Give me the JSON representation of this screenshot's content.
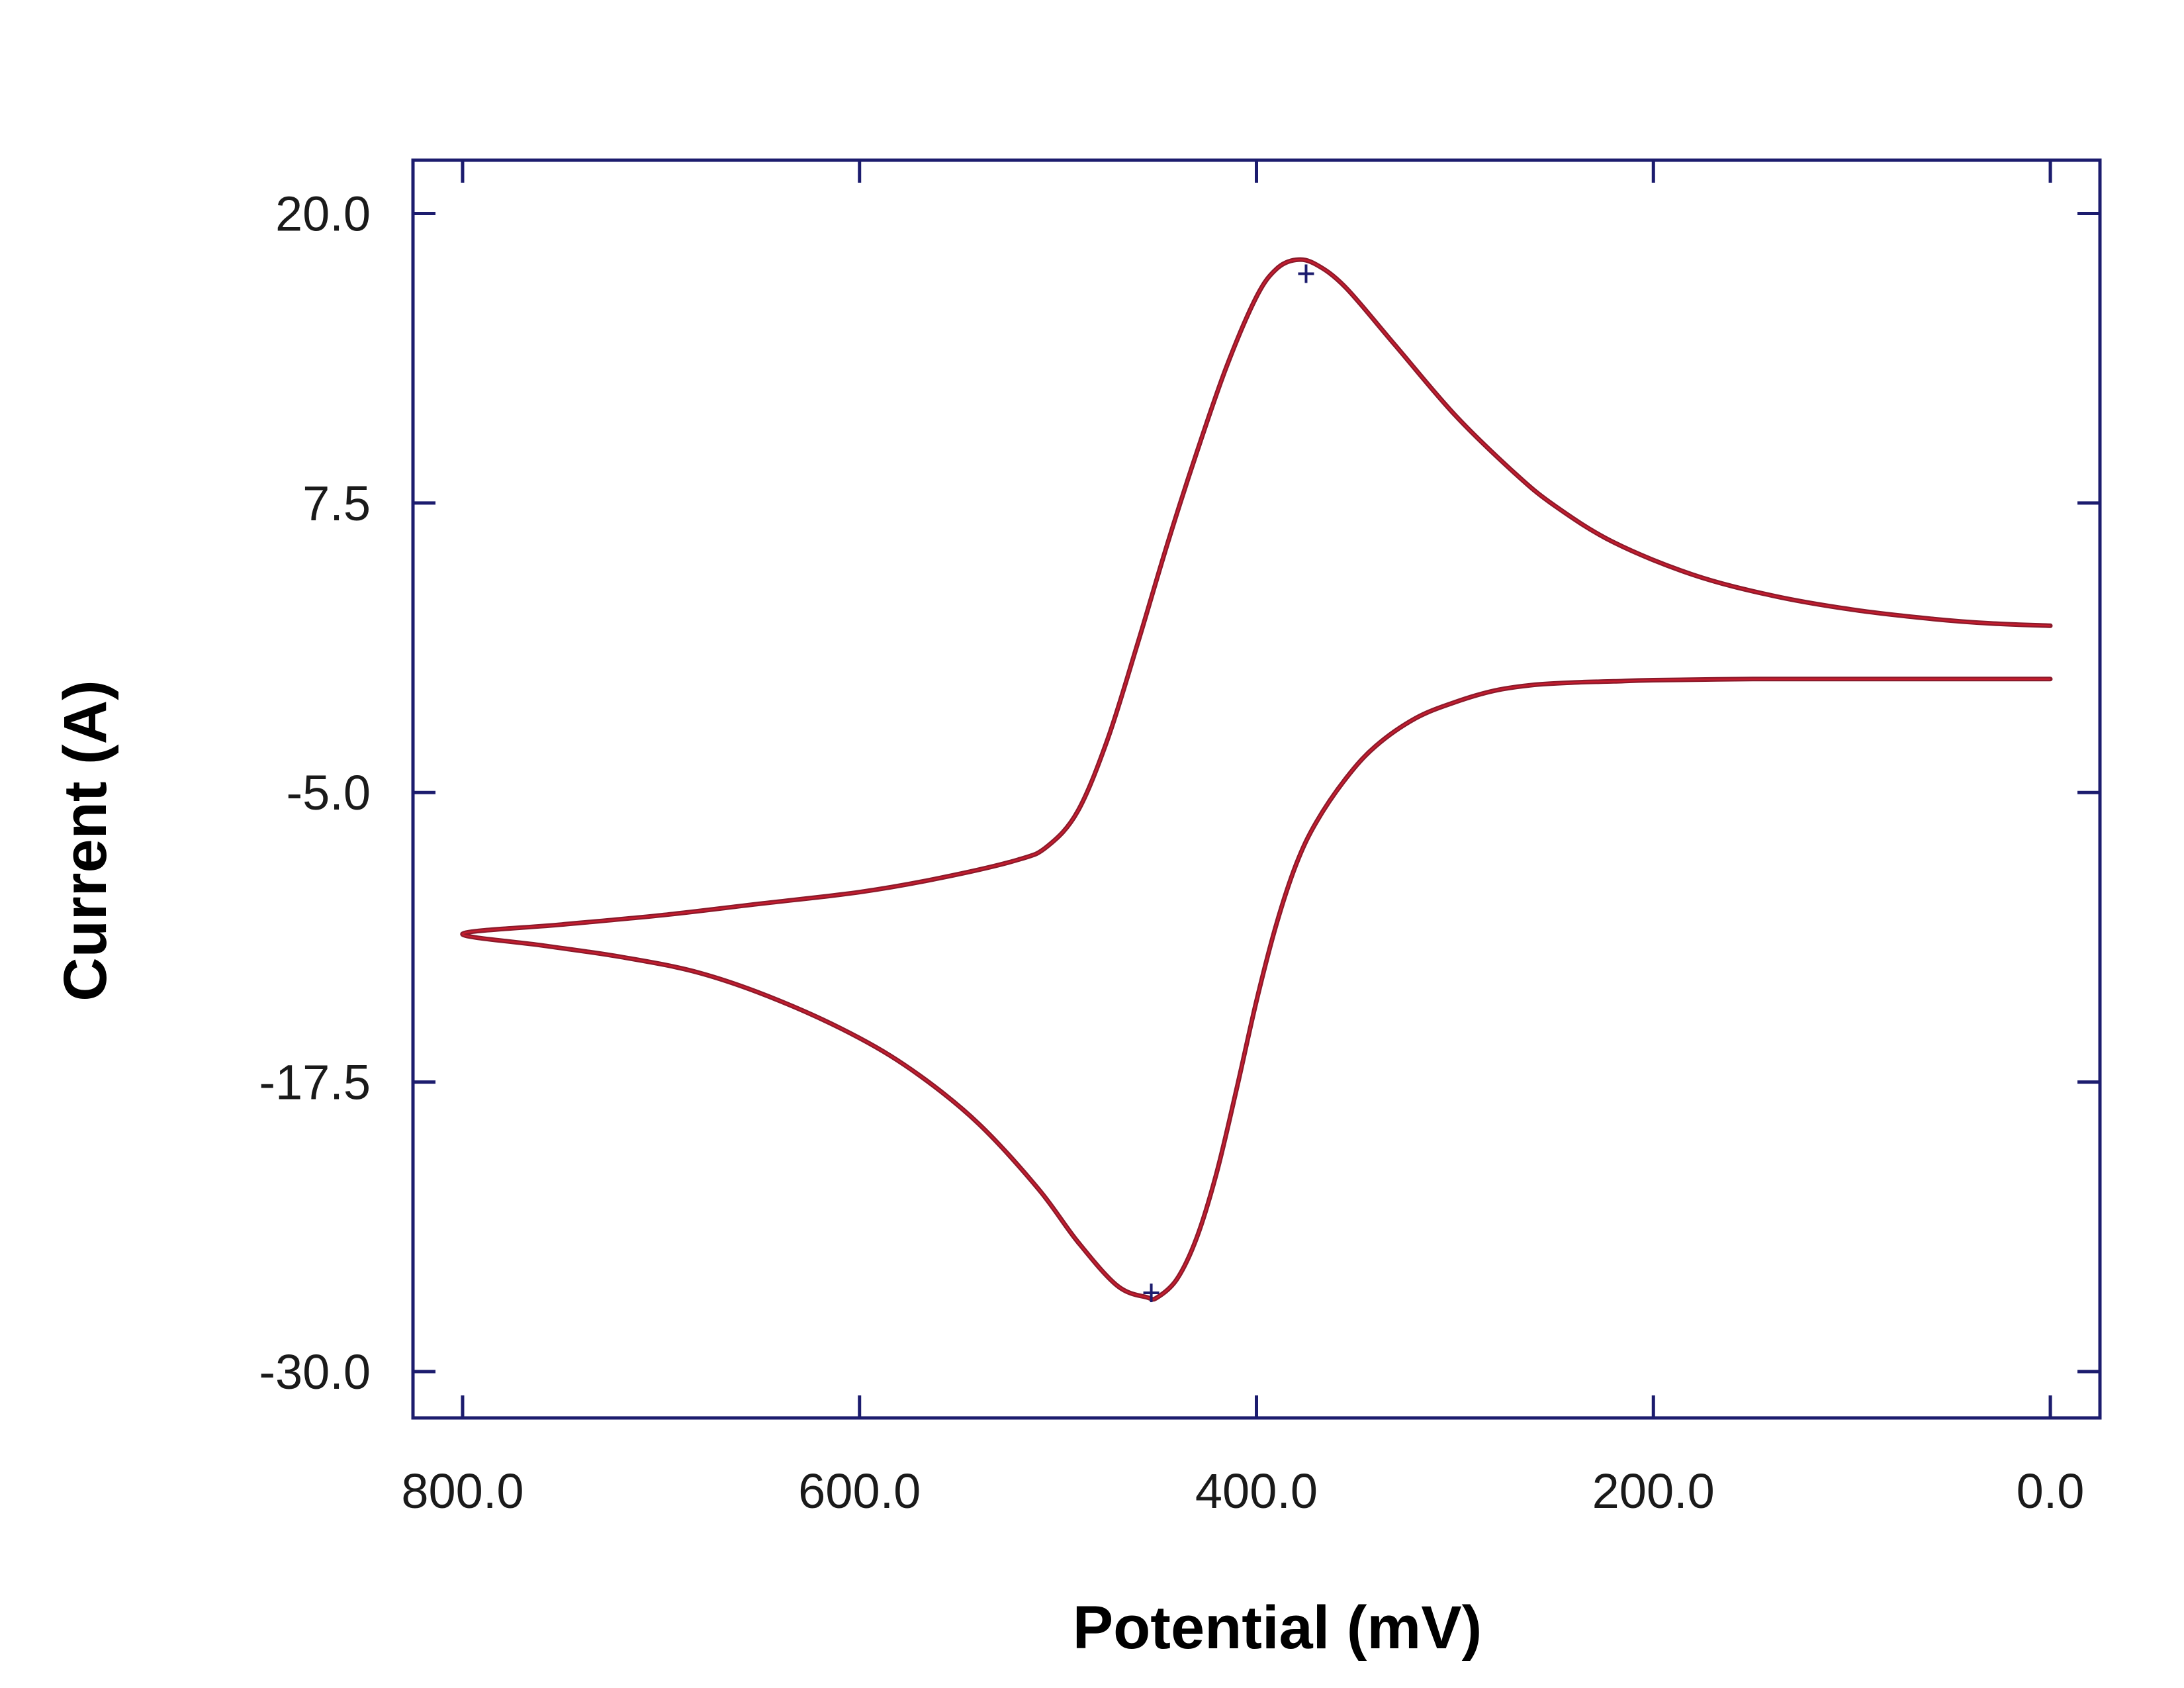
{
  "chart_data": {
    "type": "line",
    "title": "",
    "xlabel": "Potential (mV)",
    "ylabel": "Current (A)",
    "x_reversed": true,
    "xlim": [
      825,
      -25
    ],
    "ylim": [
      -32,
      22.3
    ],
    "x_ticks": [
      800,
      600,
      400,
      200,
      0
    ],
    "x_tick_labels": [
      "800.0",
      "600.0",
      "400.0",
      "200.0",
      "0.0"
    ],
    "y_ticks": [
      20,
      7.5,
      -5,
      -17.5,
      -30
    ],
    "y_tick_labels": [
      "20.0",
      "7.5",
      "-5.0",
      "-17.5",
      "-30.0"
    ],
    "grid": false,
    "legend": "none",
    "colors": {
      "frame": "#1c1c6e",
      "curve": "#8b1a2b",
      "curve_overlay": "#e02030",
      "marker": "#1c1c6e"
    },
    "series": [
      {
        "x": [
          0,
          30,
          60,
          100,
          140,
          180,
          220,
          250,
          270,
          300,
          330,
          355,
          370,
          380,
          390,
          400,
          415,
          430,
          445,
          460,
          475,
          490,
          505,
          520,
          560,
          600,
          650,
          700,
          750,
          800,
          760,
          720,
          680,
          640,
          600,
          570,
          540,
          510,
          490,
          470,
          455,
          450,
          440,
          430,
          420,
          410,
          400,
          390,
          380,
          370,
          355,
          340,
          320,
          300,
          280,
          260,
          240,
          220,
          200,
          150,
          100,
          50,
          0
        ],
        "y": [
          2.2,
          2.3,
          2.5,
          2.9,
          3.5,
          4.4,
          5.8,
          7.4,
          8.8,
          11.3,
          14.3,
          16.8,
          17.8,
          18.0,
          17.6,
          16.4,
          13.4,
          9.7,
          5.7,
          1.4,
          -2.7,
          -5.8,
          -7.3,
          -7.9,
          -8.7,
          -9.3,
          -9.8,
          -10.3,
          -10.7,
          -11.1,
          -11.6,
          -12.1,
          -12.8,
          -14.0,
          -15.6,
          -17.2,
          -19.3,
          -22.1,
          -24.4,
          -26.3,
          -26.8,
          -26.8,
          -26.0,
          -24.2,
          -21.4,
          -17.8,
          -14.0,
          -10.7,
          -8.1,
          -6.3,
          -4.4,
          -3.0,
          -1.8,
          -1.1,
          -0.6,
          -0.35,
          -0.25,
          -0.2,
          -0.15,
          -0.1,
          -0.1,
          -0.1,
          -0.1
        ]
      }
    ],
    "peak_markers": [
      {
        "x": 375,
        "y": 17.4
      },
      {
        "x": 453,
        "y": -26.6
      }
    ]
  }
}
